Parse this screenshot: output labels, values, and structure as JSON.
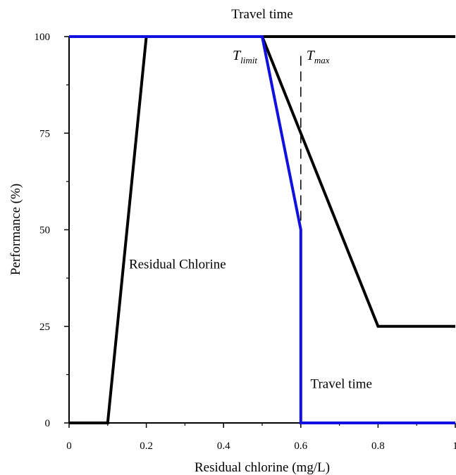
{
  "chart_data": {
    "type": "line",
    "title": "",
    "top_axis_label": "Travel time",
    "xlabel": "Residual chlorine (mg/L)",
    "ylabel": "Performance (%)",
    "xlim": [
      0,
      1
    ],
    "ylim": [
      0,
      100
    ],
    "x_ticks": [
      {
        "value": 0,
        "label": "0"
      },
      {
        "value": 0.2,
        "label": "0.2"
      },
      {
        "value": 0.4,
        "label": "0.4"
      },
      {
        "value": 0.6,
        "label": "0.6"
      },
      {
        "value": 0.8,
        "label": "0.8"
      },
      {
        "value": 1.0,
        "label": "1"
      }
    ],
    "y_ticks": [
      {
        "value": 0,
        "label": "0"
      },
      {
        "value": 25,
        "label": "25"
      },
      {
        "value": 50,
        "label": "50"
      },
      {
        "value": 75,
        "label": "75"
      },
      {
        "value": 100,
        "label": "100"
      }
    ],
    "grid": false,
    "series": [
      {
        "color": "#000000",
        "points": [
          {
            "x": 0,
            "y": 0
          },
          {
            "x": 0.1,
            "y": 0
          },
          {
            "x": 0.2,
            "y": 100
          },
          {
            "x": 1.0,
            "y": 100
          }
        ]
      },
      {
        "color": "#000000",
        "points": [
          {
            "x": 0.5,
            "y": 100
          },
          {
            "x": 0.8,
            "y": 25
          },
          {
            "x": 1.0,
            "y": 25
          }
        ]
      },
      {
        "color": "#1010e0",
        "points": [
          {
            "x": 0,
            "y": 100
          },
          {
            "x": 0.5,
            "y": 100
          },
          {
            "x": 0.6,
            "y": 50
          },
          {
            "x": 0.6,
            "y": 0
          },
          {
            "x": 1.0,
            "y": 0
          }
        ]
      }
    ],
    "reference_lines": [
      {
        "x": 0.6,
        "style": "dashed",
        "from_y": 50,
        "to_y": 95
      }
    ],
    "annotations": [
      {
        "text": "Residual Chlorine",
        "x": 0.155,
        "y": 40
      },
      {
        "text": "Travel time",
        "x": 0.625,
        "y": 9
      }
    ],
    "t_limit": {
      "base": "T",
      "sub": "limit",
      "x": 0.5,
      "y": 94
    },
    "t_max": {
      "base": "T",
      "sub": "max",
      "x": 0.6,
      "y": 94
    }
  }
}
